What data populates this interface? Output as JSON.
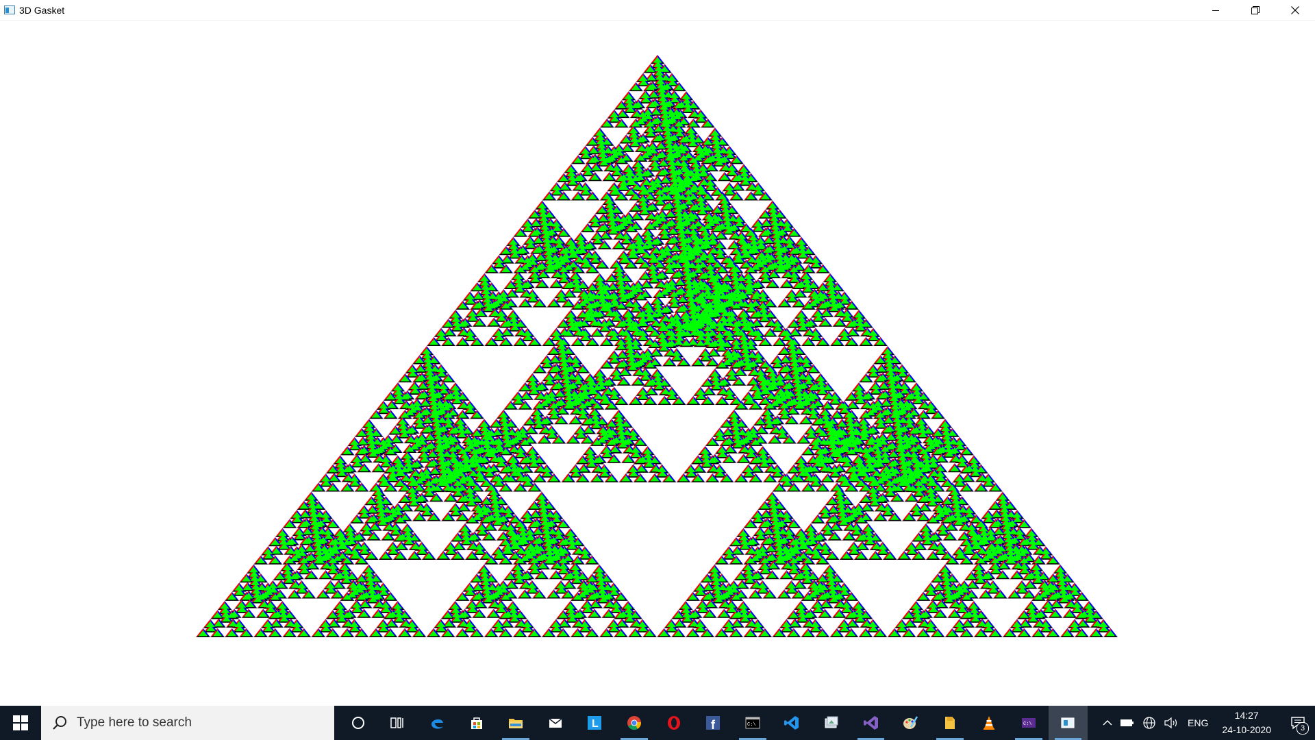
{
  "window": {
    "title": "3D Gasket",
    "controls": {
      "minimize_icon": "minimize-icon",
      "restore_icon": "restore-icon",
      "close_icon": "close-icon"
    }
  },
  "scene": {
    "name": "sierpinski-tetrahedron",
    "recursion_depth": 6,
    "face_colors": {
      "front": "#00ff00",
      "left": "#ff0000",
      "right": "#0000ff",
      "bottom": "#000000"
    },
    "background": "#ffffff"
  },
  "taskbar": {
    "search_placeholder": "Type here to search",
    "apps": [
      {
        "name": "cortana",
        "icon": "cortana-circle-icon",
        "open": false
      },
      {
        "name": "task-view",
        "icon": "task-view-icon",
        "open": false
      },
      {
        "name": "edge",
        "icon": "edge-icon",
        "open": false
      },
      {
        "name": "store",
        "icon": "store-icon",
        "open": false
      },
      {
        "name": "file-explorer",
        "icon": "folder-icon",
        "open": true
      },
      {
        "name": "mail",
        "icon": "mail-icon",
        "open": false
      },
      {
        "name": "launcher-l",
        "icon": "l-app-icon",
        "open": false
      },
      {
        "name": "chrome",
        "icon": "chrome-icon",
        "open": true
      },
      {
        "name": "opera",
        "icon": "opera-icon",
        "open": false
      },
      {
        "name": "facebook",
        "icon": "facebook-icon",
        "open": false
      },
      {
        "name": "terminal",
        "icon": "terminal-icon",
        "open": true
      },
      {
        "name": "vscode",
        "icon": "vscode-icon",
        "open": false
      },
      {
        "name": "image-tool",
        "icon": "image-tool-icon",
        "open": false
      },
      {
        "name": "visual-studio",
        "icon": "visual-studio-icon",
        "open": true
      },
      {
        "name": "paint",
        "icon": "paint-icon",
        "open": false
      },
      {
        "name": "notes",
        "icon": "notes-icon",
        "open": true
      },
      {
        "name": "vlc",
        "icon": "vlc-icon",
        "open": false
      },
      {
        "name": "console",
        "icon": "console-icon",
        "open": true
      },
      {
        "name": "gasket-app",
        "icon": "gasket-app-icon",
        "open": true
      }
    ],
    "tray": {
      "language": "ENG",
      "time": "14:27",
      "date": "24-10-2020",
      "notification_count": "3"
    }
  }
}
